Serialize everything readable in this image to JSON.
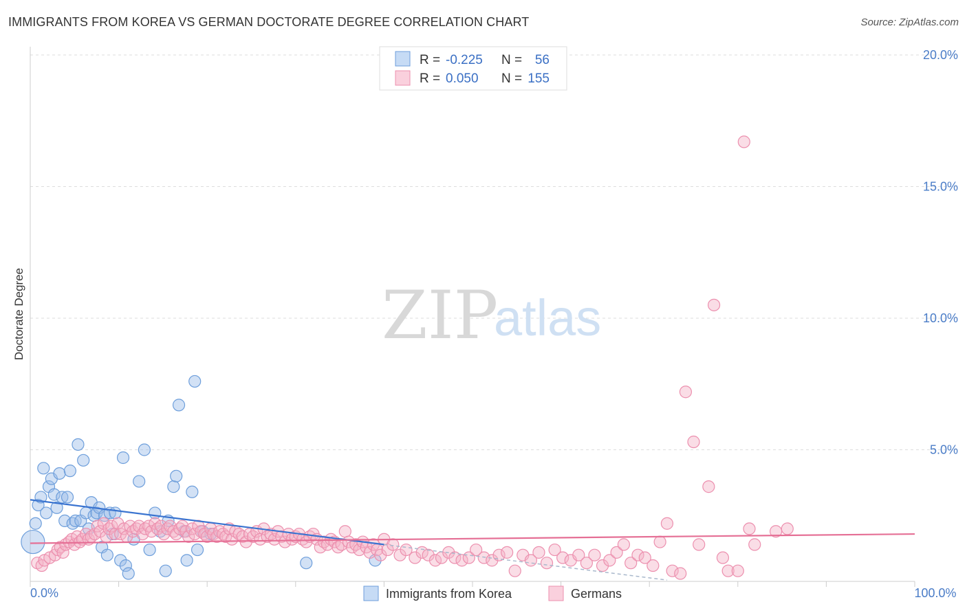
{
  "title": "IMMIGRANTS FROM KOREA VS GERMAN DOCTORATE DEGREE CORRELATION CHART",
  "source": "Source: ZipAtlas.com",
  "watermark": {
    "zip": "ZIP",
    "atlas": "atlas"
  },
  "chart_data": {
    "type": "scatter",
    "ylabel": "Doctorate Degree",
    "xlim": [
      0,
      100
    ],
    "ylim": [
      0,
      20
    ],
    "x_ticks": [
      {
        "value": 0,
        "label": "0.0%"
      },
      {
        "value": 100,
        "label": "100.0%"
      }
    ],
    "y_ticks": [
      {
        "value": 5,
        "label": "5.0%"
      },
      {
        "value": 10,
        "label": "10.0%"
      },
      {
        "value": 15,
        "label": "15.0%"
      },
      {
        "value": 20,
        "label": "20.0%"
      }
    ],
    "legend": [
      {
        "r_label": "R =",
        "r_value": "-0.225",
        "n_label": "N =",
        "n_value": "56"
      },
      {
        "r_label": "R =",
        "r_value": "0.050",
        "n_label": "N =",
        "n_value": "155"
      }
    ],
    "series": [
      {
        "name": "Immigrants from Korea",
        "color": "#9bbde8",
        "stroke": "#6d9edb",
        "line_color": "#3a74d0",
        "trend": [
          [
            0,
            3.1
          ],
          [
            40,
            1.4
          ]
        ],
        "trend_dashed": [
          [
            40,
            1.4
          ],
          [
            72,
            0.05
          ]
        ],
        "points": [
          [
            0.3,
            1.5
          ],
          [
            0.6,
            2.2
          ],
          [
            0.9,
            2.9
          ],
          [
            1.2,
            3.2
          ],
          [
            1.5,
            4.3
          ],
          [
            1.8,
            2.6
          ],
          [
            2.1,
            3.6
          ],
          [
            2.4,
            3.9
          ],
          [
            2.7,
            3.3
          ],
          [
            3.0,
            2.8
          ],
          [
            3.3,
            4.1
          ],
          [
            3.6,
            3.2
          ],
          [
            3.9,
            2.3
          ],
          [
            4.2,
            3.2
          ],
          [
            4.5,
            4.2
          ],
          [
            4.8,
            2.2
          ],
          [
            5.1,
            2.3
          ],
          [
            5.4,
            5.2
          ],
          [
            5.7,
            2.3
          ],
          [
            6.0,
            4.6
          ],
          [
            6.3,
            2.6
          ],
          [
            6.6,
            2.0
          ],
          [
            6.9,
            3.0
          ],
          [
            7.2,
            2.5
          ],
          [
            7.5,
            2.6
          ],
          [
            7.8,
            2.8
          ],
          [
            8.1,
            1.3
          ],
          [
            8.4,
            2.5
          ],
          [
            8.7,
            1.0
          ],
          [
            9.0,
            2.6
          ],
          [
            9.3,
            1.8
          ],
          [
            9.6,
            2.6
          ],
          [
            10.2,
            0.8
          ],
          [
            10.5,
            4.7
          ],
          [
            10.8,
            0.6
          ],
          [
            11.1,
            0.3
          ],
          [
            11.7,
            1.6
          ],
          [
            12.3,
            3.8
          ],
          [
            12.9,
            5.0
          ],
          [
            13.5,
            1.2
          ],
          [
            14.1,
            2.6
          ],
          [
            14.7,
            1.9
          ],
          [
            15.3,
            0.4
          ],
          [
            15.6,
            2.3
          ],
          [
            16.2,
            3.6
          ],
          [
            16.5,
            4.0
          ],
          [
            16.8,
            6.7
          ],
          [
            17.4,
            1.9
          ],
          [
            17.7,
            0.8
          ],
          [
            18.3,
            3.4
          ],
          [
            18.6,
            7.6
          ],
          [
            18.9,
            1.2
          ],
          [
            19.5,
            1.9
          ],
          [
            20.4,
            1.8
          ],
          [
            31.2,
            0.7
          ],
          [
            39.0,
            0.8
          ]
        ]
      },
      {
        "name": "Germans",
        "color": "#f5b3c8",
        "stroke": "#ec8fae",
        "line_color": "#e56f95",
        "trend": [
          [
            0,
            1.45
          ],
          [
            100,
            1.8
          ]
        ],
        "points": [
          [
            0.8,
            0.7
          ],
          [
            1.3,
            0.6
          ],
          [
            1.6,
            0.8
          ],
          [
            2.2,
            0.9
          ],
          [
            2.8,
            1.0
          ],
          [
            3.1,
            1.2
          ],
          [
            3.4,
            1.3
          ],
          [
            3.7,
            1.1
          ],
          [
            4.0,
            1.4
          ],
          [
            4.4,
            1.5
          ],
          [
            4.7,
            1.6
          ],
          [
            5.0,
            1.4
          ],
          [
            5.3,
            1.7
          ],
          [
            5.6,
            1.5
          ],
          [
            5.9,
            1.6
          ],
          [
            6.3,
            1.8
          ],
          [
            6.6,
            1.6
          ],
          [
            6.9,
            1.7
          ],
          [
            7.3,
            1.8
          ],
          [
            7.6,
            2.1
          ],
          [
            7.9,
            1.9
          ],
          [
            8.3,
            2.2
          ],
          [
            8.6,
            1.7
          ],
          [
            8.9,
            2.0
          ],
          [
            9.2,
            2.1
          ],
          [
            9.6,
            1.8
          ],
          [
            9.9,
            2.2
          ],
          [
            10.2,
            1.8
          ],
          [
            10.6,
            2.0
          ],
          [
            10.9,
            1.7
          ],
          [
            11.3,
            2.1
          ],
          [
            11.6,
            1.9
          ],
          [
            12.0,
            2.0
          ],
          [
            12.3,
            2.1
          ],
          [
            12.7,
            1.8
          ],
          [
            13.0,
            2.0
          ],
          [
            13.4,
            2.1
          ],
          [
            13.7,
            1.9
          ],
          [
            14.1,
            2.2
          ],
          [
            14.4,
            2.0
          ],
          [
            14.8,
            2.1
          ],
          [
            15.1,
            1.8
          ],
          [
            15.5,
            2.0
          ],
          [
            15.8,
            2.1
          ],
          [
            16.2,
            1.9
          ],
          [
            16.5,
            1.8
          ],
          [
            16.9,
            2.0
          ],
          [
            17.2,
            2.1
          ],
          [
            17.6,
            1.9
          ],
          [
            17.9,
            1.7
          ],
          [
            18.3,
            2.0
          ],
          [
            18.6,
            1.8
          ],
          [
            19.0,
            2.1
          ],
          [
            19.3,
            1.9
          ],
          [
            19.7,
            1.8
          ],
          [
            20.0,
            1.7
          ],
          [
            20.4,
            2.0
          ],
          [
            20.7,
            1.8
          ],
          [
            21.1,
            1.7
          ],
          [
            21.4,
            1.9
          ],
          [
            21.8,
            1.8
          ],
          [
            22.1,
            1.7
          ],
          [
            22.5,
            2.0
          ],
          [
            22.8,
            1.6
          ],
          [
            23.2,
            1.9
          ],
          [
            23.6,
            1.8
          ],
          [
            24.0,
            1.7
          ],
          [
            24.4,
            1.5
          ],
          [
            24.8,
            1.8
          ],
          [
            25.2,
            1.7
          ],
          [
            25.6,
            1.9
          ],
          [
            26.0,
            1.6
          ],
          [
            26.4,
            2.0
          ],
          [
            26.8,
            1.7
          ],
          [
            27.2,
            1.8
          ],
          [
            27.6,
            1.6
          ],
          [
            28.0,
            1.9
          ],
          [
            28.4,
            1.7
          ],
          [
            28.8,
            1.5
          ],
          [
            29.2,
            1.8
          ],
          [
            29.6,
            1.6
          ],
          [
            30.0,
            1.7
          ],
          [
            30.4,
            1.8
          ],
          [
            30.8,
            1.6
          ],
          [
            31.2,
            1.5
          ],
          [
            31.6,
            1.7
          ],
          [
            32.0,
            1.8
          ],
          [
            32.4,
            1.6
          ],
          [
            32.8,
            1.3
          ],
          [
            33.2,
            1.5
          ],
          [
            33.6,
            1.4
          ],
          [
            34.0,
            1.6
          ],
          [
            34.4,
            1.5
          ],
          [
            34.8,
            1.3
          ],
          [
            35.2,
            1.4
          ],
          [
            35.6,
            1.9
          ],
          [
            36.0,
            1.5
          ],
          [
            36.4,
            1.3
          ],
          [
            36.8,
            1.4
          ],
          [
            37.2,
            1.2
          ],
          [
            37.6,
            1.5
          ],
          [
            38.0,
            1.3
          ],
          [
            38.4,
            1.1
          ],
          [
            38.8,
            1.4
          ],
          [
            39.2,
            1.2
          ],
          [
            39.6,
            1.0
          ],
          [
            40.0,
            1.6
          ],
          [
            40.4,
            1.2
          ],
          [
            41.0,
            1.4
          ],
          [
            41.8,
            1.0
          ],
          [
            42.5,
            1.2
          ],
          [
            43.5,
            0.9
          ],
          [
            44.3,
            1.1
          ],
          [
            45.0,
            1.0
          ],
          [
            45.8,
            0.8
          ],
          [
            46.5,
            0.9
          ],
          [
            47.3,
            1.1
          ],
          [
            48.0,
            0.9
          ],
          [
            48.8,
            0.8
          ],
          [
            49.6,
            0.9
          ],
          [
            50.4,
            1.2
          ],
          [
            51.3,
            0.9
          ],
          [
            52.2,
            0.8
          ],
          [
            53.0,
            1.0
          ],
          [
            53.9,
            1.1
          ],
          [
            54.8,
            0.4
          ],
          [
            55.7,
            1.0
          ],
          [
            56.6,
            0.8
          ],
          [
            57.5,
            1.1
          ],
          [
            58.4,
            0.7
          ],
          [
            59.3,
            1.2
          ],
          [
            60.2,
            0.9
          ],
          [
            61.1,
            0.8
          ],
          [
            62.0,
            1.0
          ],
          [
            62.9,
            0.7
          ],
          [
            63.8,
            1.0
          ],
          [
            64.7,
            0.6
          ],
          [
            65.5,
            0.8
          ],
          [
            66.3,
            1.1
          ],
          [
            67.1,
            1.4
          ],
          [
            67.9,
            0.7
          ],
          [
            68.7,
            1.0
          ],
          [
            69.5,
            0.9
          ],
          [
            70.4,
            0.6
          ],
          [
            71.2,
            1.5
          ],
          [
            72.0,
            2.2
          ],
          [
            72.6,
            0.4
          ],
          [
            73.5,
            0.3
          ],
          [
            74.1,
            7.2
          ],
          [
            75.0,
            5.3
          ],
          [
            75.6,
            1.4
          ],
          [
            76.7,
            3.6
          ],
          [
            77.3,
            10.5
          ],
          [
            78.3,
            0.9
          ],
          [
            78.9,
            0.4
          ],
          [
            80.0,
            0.4
          ],
          [
            80.7,
            16.7
          ],
          [
            81.3,
            2.0
          ],
          [
            81.9,
            1.4
          ],
          [
            84.3,
            1.9
          ],
          [
            85.6,
            2.0
          ]
        ]
      }
    ]
  }
}
